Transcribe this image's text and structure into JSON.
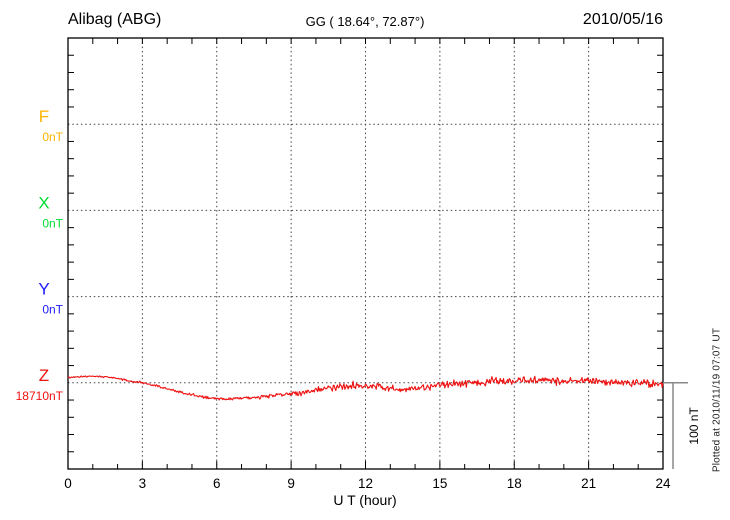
{
  "header": {
    "station": "Alibag (ABG)",
    "coordinates": "GG ( 18.64°,  72.87°)",
    "date": "2010/05/16"
  },
  "chart_data": {
    "type": "line",
    "title": "Alibag (ABG)",
    "subtitle": "GG ( 18.64°,  72.87°)",
    "date": "2010/05/16",
    "xlabel": "U T (hour)",
    "x_range": [
      0,
      24
    ],
    "x_major_ticks": [
      0,
      3,
      6,
      9,
      12,
      15,
      18,
      21,
      24
    ],
    "x_minor_step_hours": 1,
    "grid": "dotted",
    "y_division_nT": 20,
    "channel_spacing_nT": 100,
    "channels": [
      {
        "name": "F",
        "value_label": "0nT",
        "color": "#FFB300",
        "has_trace": false
      },
      {
        "name": "X",
        "value_label": "0nT",
        "color": "#00DD33",
        "has_trace": false
      },
      {
        "name": "Y",
        "value_label": "0nT",
        "color": "#1A1AFF",
        "has_trace": false
      },
      {
        "name": "Z",
        "value_label": "18710nT",
        "color": "#EE1111",
        "has_trace": true
      }
    ],
    "z_trace": {
      "channel": "Z",
      "baseline_value_nT": 18710,
      "color": "#EE1111",
      "anchor_step_hours": 0.5,
      "offsets_nT": [
        6,
        7,
        8,
        7,
        5,
        2,
        0,
        -3,
        -7,
        -11,
        -14,
        -17,
        -18,
        -19,
        -18,
        -17,
        -16,
        -14,
        -13,
        -11,
        -8,
        -6,
        -4,
        -3,
        -3,
        -5,
        -7,
        -8,
        -7,
        -5,
        -2,
        -1,
        0,
        1,
        2,
        2,
        2,
        3,
        3,
        2,
        3,
        2,
        2,
        1,
        1,
        0,
        0,
        -1,
        -1
      ],
      "noise_amp_nT": [
        1,
        1,
        1,
        1,
        1,
        1.2,
        1.3,
        1.3,
        1.4,
        1.4,
        1.5,
        1.5,
        1.5,
        1.6,
        1.6,
        1.8,
        2,
        2.2,
        2.5,
        2.8,
        3.2,
        3.5,
        3.8,
        3.8,
        3.8,
        3.8,
        3.8,
        3.8,
        3.8,
        4,
        4.2,
        4.2,
        4,
        4.2,
        4.5,
        4.2,
        4.5,
        4.5,
        4.2,
        4.5,
        4.2,
        4.5,
        4.2,
        4,
        4.2,
        4,
        4.2,
        4,
        4
      ],
      "samples_per_hour": 30,
      "seed": 20100516
    },
    "scale_bar": {
      "label": "100 nT",
      "span_nT": 100,
      "color": "#888888"
    },
    "plotted_note": "Plotted at 2010/11/19 07:07 UT",
    "axis_color": "#000000",
    "grid_color": "#444444"
  }
}
